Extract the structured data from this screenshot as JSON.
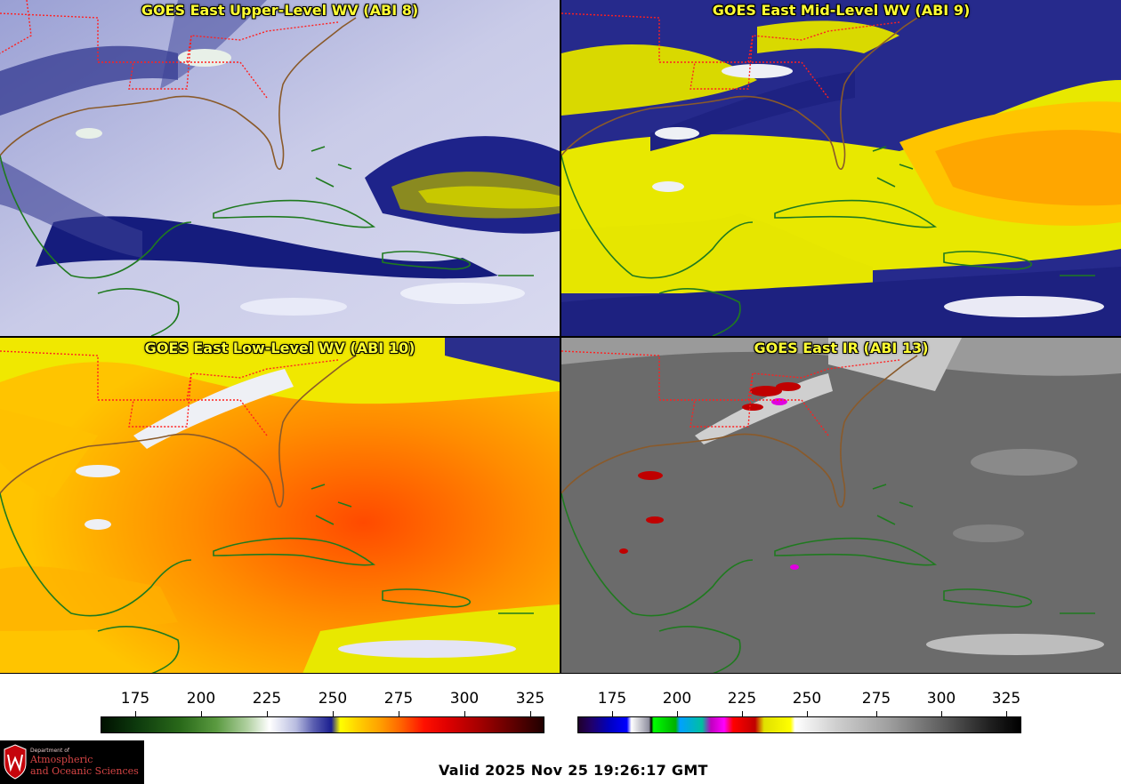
{
  "panels": [
    {
      "id": "p1",
      "title": "GOES East Upper-Level WV (ABI 8)",
      "palette": "wv"
    },
    {
      "id": "p2",
      "title": "GOES East Mid-Level WV (ABI 9)",
      "palette": "wv-mid"
    },
    {
      "id": "p3",
      "title": "GOES East Low-Level WV (ABI 10)",
      "palette": "wv-low"
    },
    {
      "id": "p4",
      "title": "GOES East IR (ABI 13)",
      "palette": "ir"
    }
  ],
  "colorbars": {
    "wv": {
      "ticks": [
        "175",
        "200",
        "225",
        "250",
        "275",
        "300",
        "325"
      ]
    },
    "ir": {
      "ticks": [
        "175",
        "200",
        "225",
        "250",
        "275",
        "300",
        "325"
      ]
    }
  },
  "colors": {
    "coastline": "#1f7a1f",
    "state_borders": "#ff2020",
    "title_text": "#ffff33"
  },
  "logo": {
    "small_text": "Department of",
    "line1": "Atmospheric",
    "line2": "and Oceanic Sciences"
  },
  "valid_time": "Valid 2025 Nov 25 19:26:17 GMT"
}
